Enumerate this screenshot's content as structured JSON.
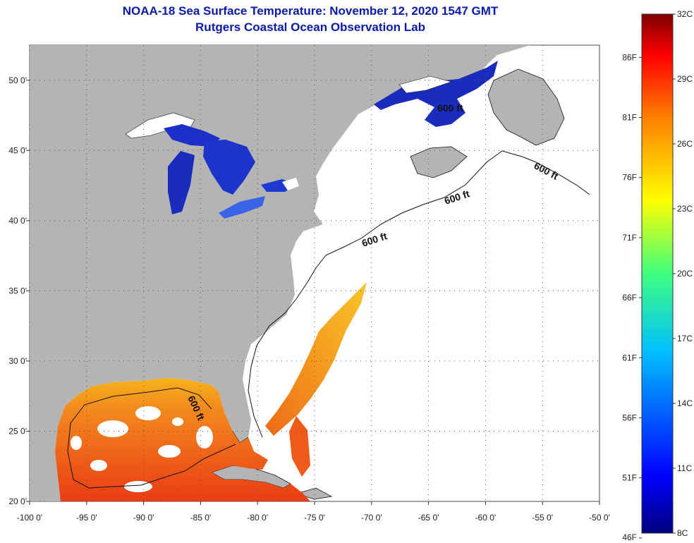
{
  "title": {
    "line1": "NOAA-18 Sea Surface Temperature:  November 12, 2020 1547 GMT",
    "line2": "Rutgers Coastal Ocean Observation Lab"
  },
  "map": {
    "lon_range": [
      -100,
      -50
    ],
    "lat_range": [
      20,
      52.5
    ],
    "lon_ticks": [
      "-100 0'",
      "-95 0'",
      "-90 0'",
      "-85 0'",
      "-80 0'",
      "-75 0'",
      "-70 0'",
      "-65 0'",
      "-60 0'",
      "-55 0'",
      "-50 0'"
    ],
    "lon_values": [
      -100,
      -95,
      -90,
      -85,
      -80,
      -75,
      -70,
      -65,
      -60,
      -55,
      -50
    ],
    "lat_ticks": [
      "50 0'",
      "45 0'",
      "40 0'",
      "35 0'",
      "30 0'",
      "25 0'",
      "20 0'"
    ],
    "lat_values": [
      50,
      45,
      40,
      35,
      30,
      25,
      20
    ],
    "contour_labels": [
      "600 ft",
      "600 ft",
      "600 ft",
      "600 ft",
      "600 ft"
    ]
  },
  "colorbar": {
    "range_c": [
      8,
      32
    ],
    "celsius_labels": [
      "32C",
      "29C",
      "26C",
      "23C",
      "20C",
      "17C",
      "14C",
      "11C",
      "8C"
    ],
    "celsius_values": [
      32,
      29,
      26,
      23,
      20,
      17,
      14,
      11,
      8
    ],
    "fahrenheit_labels": [
      "86F",
      "81F",
      "76F",
      "71F",
      "66F",
      "61F",
      "56F",
      "51F",
      "46F"
    ],
    "fahrenheit_values": [
      86,
      81,
      76,
      71,
      66,
      61,
      56,
      51,
      46
    ]
  },
  "colors": {
    "land": "#b4b4b4",
    "ocean_nodata": "#ffffff",
    "lakes": "#1a2fc4",
    "gulf_warm": "#ef4a1a",
    "title_blue": "#0a1aa8"
  }
}
